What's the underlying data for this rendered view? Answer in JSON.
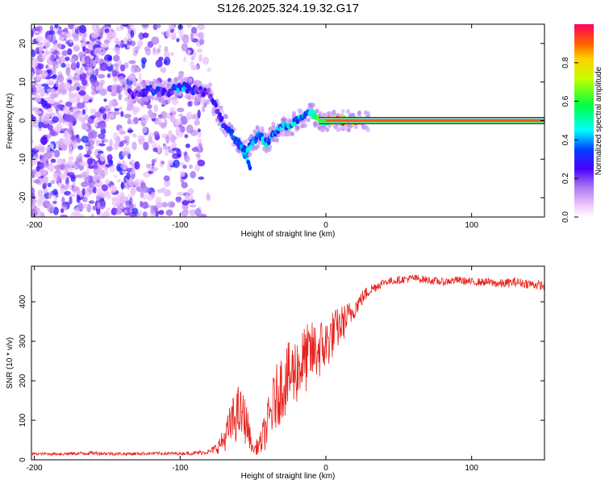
{
  "title": "S126.2025.324.19.32.G17",
  "colors": {
    "snr_line": "#e8211c",
    "axis": "#000000",
    "tick": "#000000"
  },
  "chart_data": [
    {
      "type": "heatmap",
      "xlabel": "Height of straight line (km)",
      "ylabel": "Frequency (Hz)",
      "xlim": [
        -202,
        150
      ],
      "ylim": [
        -25,
        25
      ],
      "x_ticks": [
        -200,
        -100,
        0,
        100
      ],
      "x_tick_labels": [
        "-200",
        "-100",
        "0",
        "100"
      ],
      "y_ticks": [
        -20,
        -10,
        0,
        10,
        20
      ],
      "y_tick_labels": [
        "-20",
        "-10",
        "0",
        "10",
        "20"
      ],
      "colorbar": {
        "label": "Normalized spectral amplitude",
        "range": [
          0,
          1
        ],
        "ticks": [
          0,
          0.2,
          0.4,
          0.6,
          0.8
        ],
        "tick_labels": [
          "0.0",
          "0.2",
          "0.4",
          "0.6",
          "0.8"
        ]
      },
      "ridge": {
        "x": [
          -130,
          -120,
          -110,
          -100,
          -90,
          -80,
          -75,
          -70,
          -65,
          -60,
          -55,
          -50,
          -45,
          -40,
          -35,
          -30,
          -25,
          -20,
          -15,
          -10,
          -5,
          0,
          10,
          20,
          30,
          50,
          100,
          150
        ],
        "freq": [
          7,
          8,
          7,
          9,
          8,
          7,
          3,
          -1,
          -3,
          -6,
          -8,
          -5,
          -4,
          -6,
          -3,
          -1,
          -2,
          0,
          1,
          2,
          0,
          0,
          0,
          0,
          0,
          0,
          0,
          0
        ],
        "amp": [
          0.25,
          0.35,
          0.3,
          0.45,
          0.3,
          0.25,
          0.3,
          0.35,
          0.35,
          0.4,
          0.45,
          0.5,
          0.55,
          0.5,
          0.5,
          0.45,
          0.55,
          0.5,
          0.55,
          0.6,
          0.7,
          0.8,
          0.95,
          0.95,
          0.95,
          0.95,
          0.95,
          0.95
        ]
      },
      "branch": {
        "x": [
          -60,
          -57,
          -54,
          -52
        ],
        "freq": [
          -5,
          -8,
          -10,
          -12
        ]
      }
    },
    {
      "type": "line",
      "xlabel": "Height of straight line (km)",
      "ylabel": "SNR (10 * v/v)",
      "xlim": [
        -202,
        150
      ],
      "ylim": [
        0,
        490
      ],
      "x_ticks": [
        -200,
        -100,
        0,
        100
      ],
      "x_tick_labels": [
        "-200",
        "-100",
        "0",
        "100"
      ],
      "y_ticks": [
        0,
        100,
        200,
        300,
        400
      ],
      "y_tick_labels": [
        "0",
        "100",
        "200",
        "300",
        "400"
      ],
      "series": [
        {
          "name": "SNR",
          "x": [
            -202,
            -180,
            -160,
            -140,
            -120,
            -100,
            -90,
            -80,
            -75,
            -70,
            -65,
            -60,
            -55,
            -50,
            -45,
            -40,
            -35,
            -30,
            -25,
            -20,
            -15,
            -10,
            -5,
            0,
            5,
            10,
            15,
            20,
            25,
            30,
            40,
            50,
            60,
            70,
            80,
            90,
            100,
            110,
            120,
            130,
            140,
            150
          ],
          "values": [
            15,
            15,
            17,
            15,
            16,
            16,
            17,
            20,
            30,
            50,
            90,
            120,
            100,
            25,
            40,
            90,
            150,
            190,
            210,
            230,
            250,
            270,
            280,
            290,
            320,
            340,
            360,
            385,
            410,
            430,
            450,
            455,
            460,
            455,
            450,
            455,
            450,
            450,
            445,
            450,
            445,
            440
          ],
          "noise": [
            3,
            4,
            5,
            4,
            4,
            4,
            5,
            6,
            15,
            30,
            60,
            70,
            60,
            10,
            30,
            60,
            80,
            90,
            90,
            90,
            90,
            80,
            80,
            70,
            60,
            50,
            40,
            25,
            20,
            15,
            10,
            10,
            10,
            10,
            10,
            10,
            10,
            10,
            12,
            12,
            12,
            12
          ]
        }
      ]
    }
  ]
}
